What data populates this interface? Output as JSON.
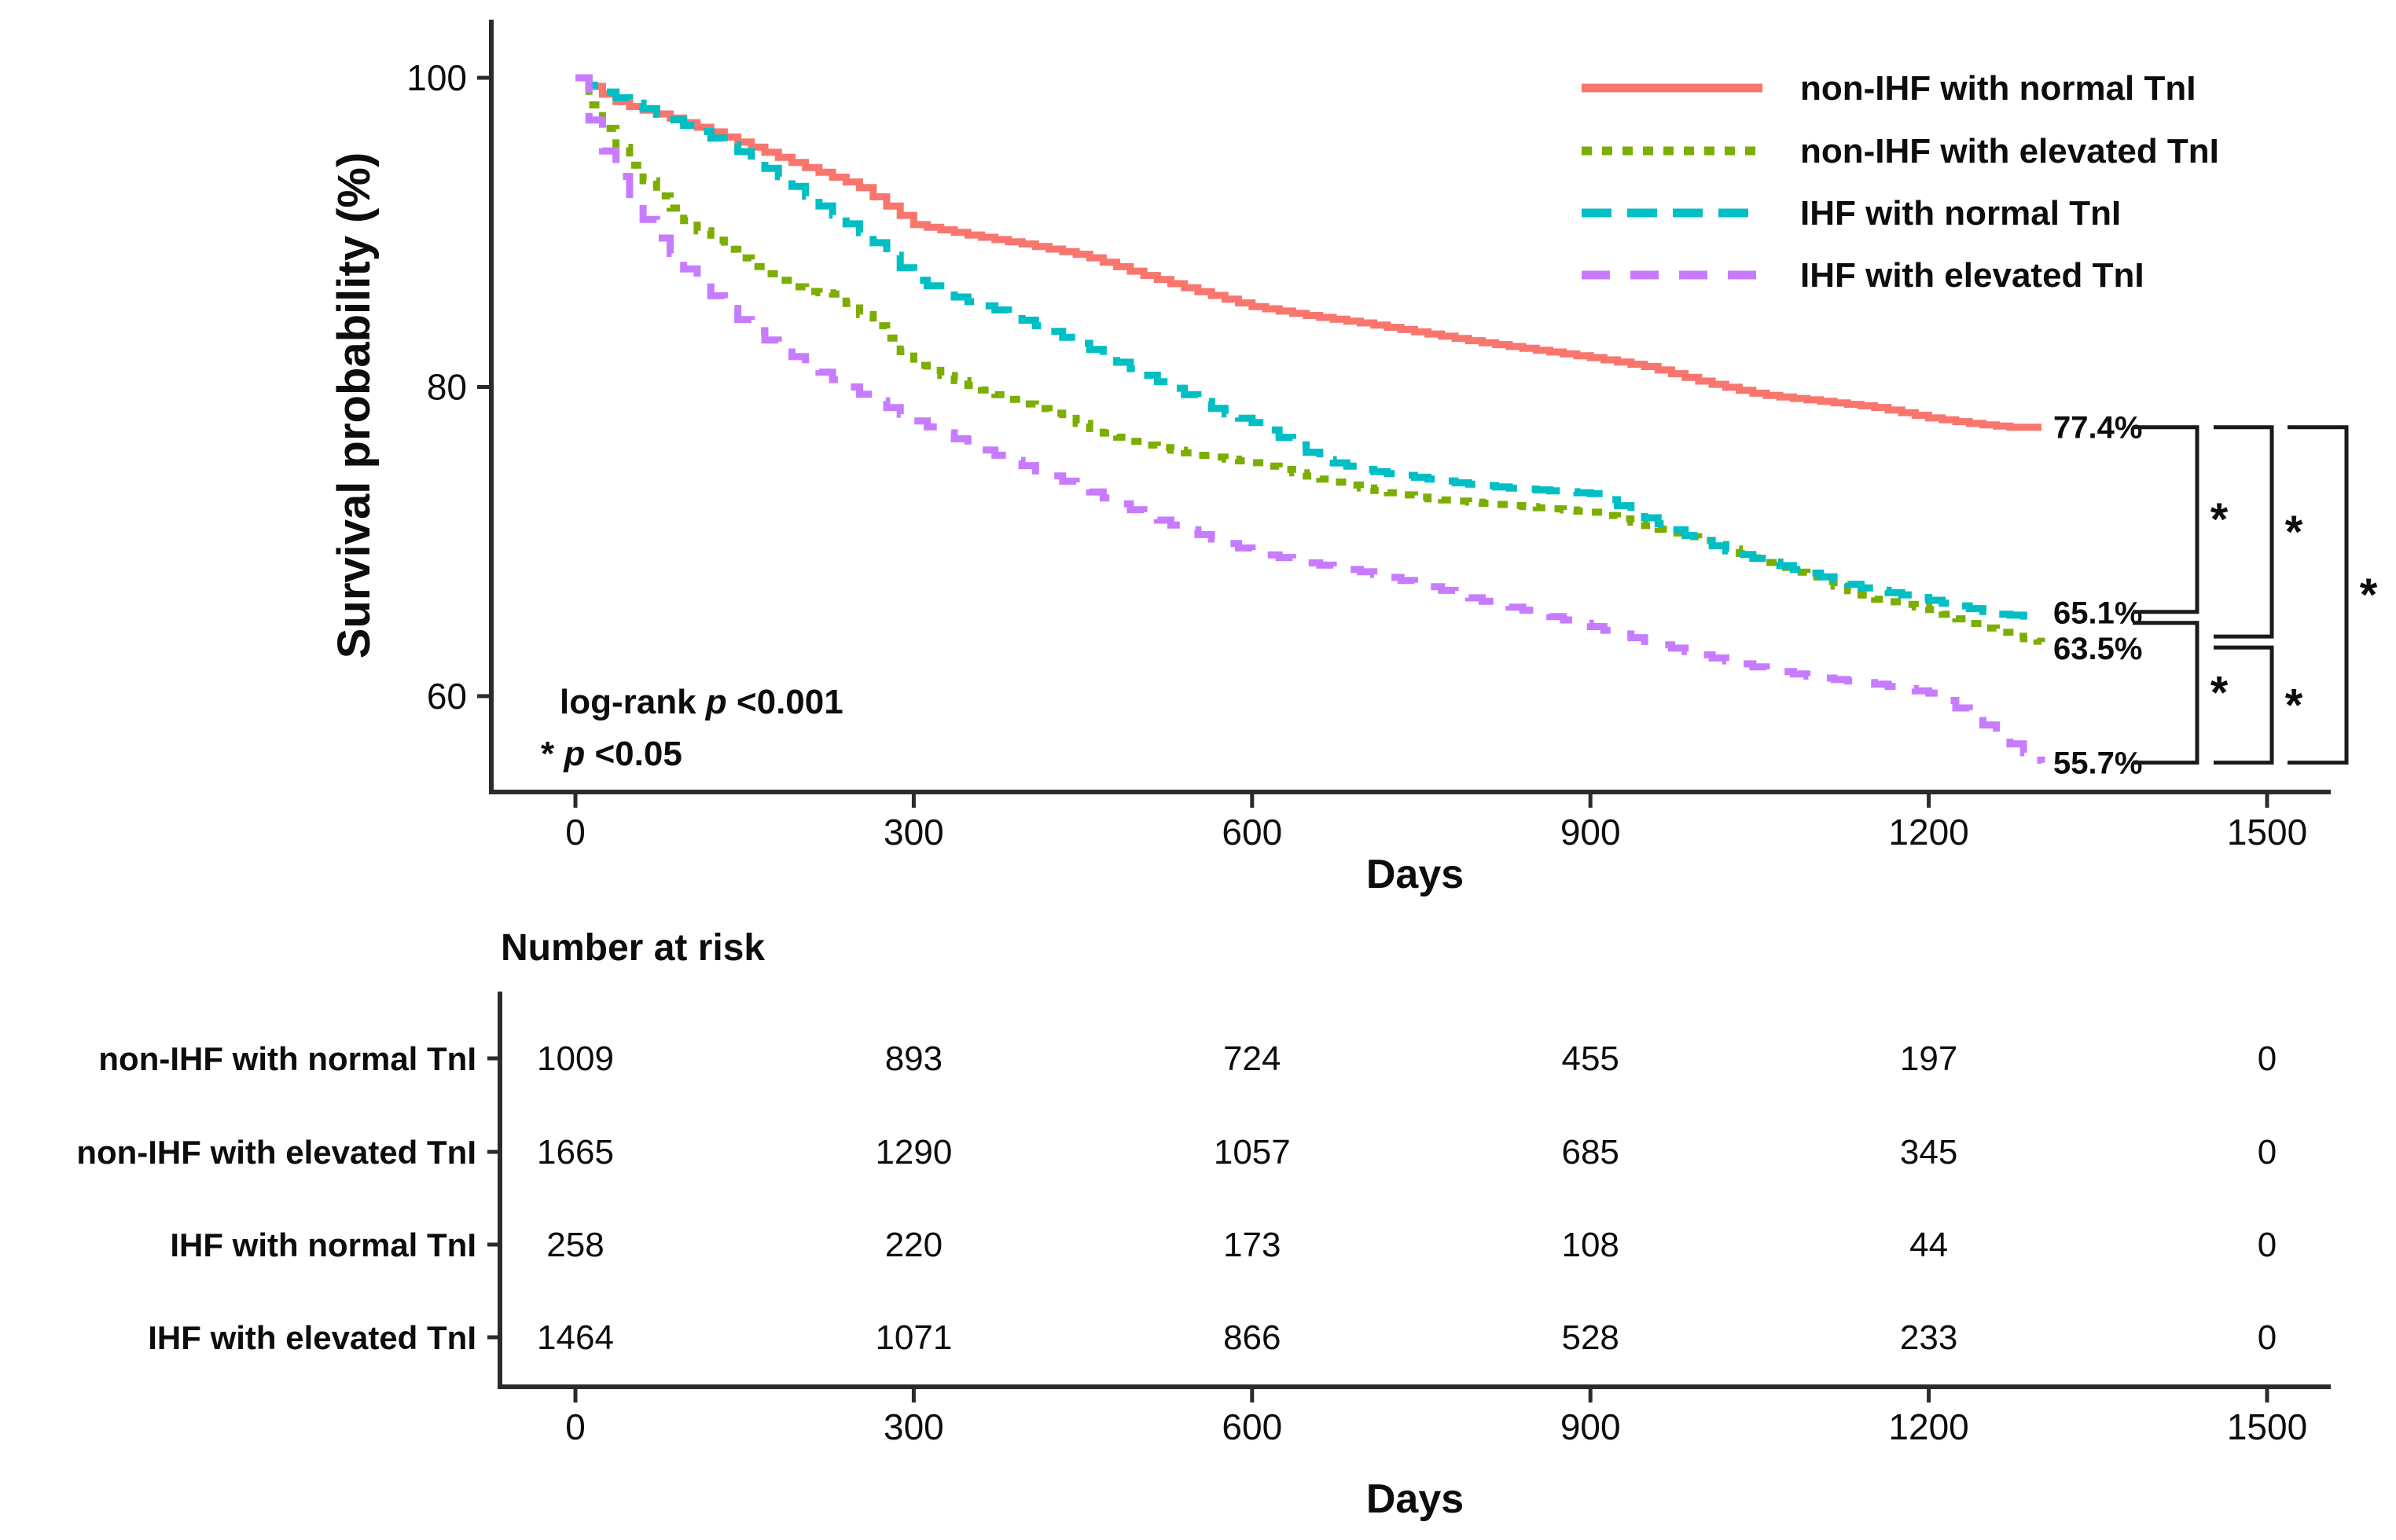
{
  "figure": {
    "background": "#ffffff",
    "text_color": "#0d0d0d"
  },
  "chart_data": {
    "type": "line",
    "subtype": "kaplan-meier-step",
    "title": "",
    "xlabel": "Days",
    "ylabel": "Survival probability (%)",
    "x_ticks": [
      0,
      300,
      600,
      900,
      1200,
      1500
    ],
    "y_ticks": [
      100,
      80,
      60
    ],
    "xlim": [
      0,
      1500
    ],
    "ylim_visible": [
      53.8,
      103.8
    ],
    "grid": false,
    "legend_position": "top-right",
    "series": [
      {
        "name": "non-IHF with normal TnI",
        "color": "#F8766D",
        "dash": "solid",
        "end_label": "77.4%",
        "end_value": 77.4,
        "points": [
          [
            0,
            100
          ],
          [
            15,
            99.3
          ],
          [
            40,
            98.3
          ],
          [
            80,
            97.5
          ],
          [
            120,
            96.5
          ],
          [
            160,
            95.4
          ],
          [
            200,
            94.3
          ],
          [
            250,
            93.0
          ],
          [
            300,
            90.5
          ],
          [
            350,
            89.8
          ],
          [
            400,
            89.2
          ],
          [
            450,
            88.5
          ],
          [
            500,
            87.3
          ],
          [
            550,
            86.2
          ],
          [
            600,
            85.2
          ],
          [
            650,
            84.6
          ],
          [
            700,
            84.1
          ],
          [
            750,
            83.5
          ],
          [
            800,
            82.9
          ],
          [
            850,
            82.4
          ],
          [
            900,
            81.9
          ],
          [
            950,
            81.3
          ],
          [
            1000,
            80.3
          ],
          [
            1050,
            79.5
          ],
          [
            1100,
            79.1
          ],
          [
            1150,
            78.7
          ],
          [
            1200,
            78.0
          ],
          [
            1240,
            77.6
          ],
          [
            1270,
            77.4
          ],
          [
            1300,
            77.4
          ]
        ]
      },
      {
        "name": "non-IHF with elevated TnI",
        "color": "#7CAE00",
        "dash": "dotted",
        "end_label": "63.5%",
        "end_value": 63.5,
        "points": [
          [
            0,
            100
          ],
          [
            10,
            98.5
          ],
          [
            25,
            96.6
          ],
          [
            45,
            94.6
          ],
          [
            70,
            92.5
          ],
          [
            100,
            90.5
          ],
          [
            130,
            89.0
          ],
          [
            160,
            87.6
          ],
          [
            200,
            86.2
          ],
          [
            230,
            86.0
          ],
          [
            270,
            83.6
          ],
          [
            300,
            81.4
          ],
          [
            340,
            80.3
          ],
          [
            380,
            79.3
          ],
          [
            420,
            78.3
          ],
          [
            460,
            77.2
          ],
          [
            500,
            76.3
          ],
          [
            550,
            75.6
          ],
          [
            600,
            75.1
          ],
          [
            650,
            74.2
          ],
          [
            700,
            73.4
          ],
          [
            750,
            72.8
          ],
          [
            800,
            72.5
          ],
          [
            850,
            72.2
          ],
          [
            900,
            71.9
          ],
          [
            950,
            71.0
          ],
          [
            1000,
            70.0
          ],
          [
            1050,
            68.8
          ],
          [
            1100,
            67.5
          ],
          [
            1150,
            66.3
          ],
          [
            1200,
            65.6
          ],
          [
            1240,
            64.6
          ],
          [
            1270,
            63.9
          ],
          [
            1300,
            63.5
          ]
        ]
      },
      {
        "name": "IHF with normal TnI",
        "color": "#00BFC4",
        "dash": "dashed",
        "end_label": "65.1%",
        "end_value": 65.1,
        "points": [
          [
            0,
            100
          ],
          [
            20,
            99.2
          ],
          [
            60,
            98.0
          ],
          [
            100,
            96.8
          ],
          [
            140,
            95.4
          ],
          [
            180,
            93.6
          ],
          [
            220,
            91.5
          ],
          [
            260,
            89.6
          ],
          [
            300,
            86.9
          ],
          [
            340,
            85.7
          ],
          [
            380,
            84.8
          ],
          [
            420,
            83.6
          ],
          [
            460,
            82.3
          ],
          [
            500,
            80.9
          ],
          [
            540,
            79.5
          ],
          [
            570,
            78.4
          ],
          [
            600,
            77.7
          ],
          [
            630,
            76.5
          ],
          [
            660,
            75.3
          ],
          [
            700,
            74.6
          ],
          [
            740,
            74.2
          ],
          [
            780,
            73.8
          ],
          [
            820,
            73.5
          ],
          [
            860,
            73.3
          ],
          [
            900,
            73.1
          ],
          [
            940,
            71.8
          ],
          [
            980,
            70.5
          ],
          [
            1020,
            69.4
          ],
          [
            1060,
            68.6
          ],
          [
            1100,
            67.8
          ],
          [
            1140,
            67.0
          ],
          [
            1180,
            66.5
          ],
          [
            1220,
            65.9
          ],
          [
            1260,
            65.3
          ],
          [
            1300,
            65.1
          ]
        ]
      },
      {
        "name": "IHF with elevated TnI",
        "color": "#C77CFF",
        "dash": "long-dashed",
        "end_label": "55.7%",
        "end_value": 55.7,
        "points": [
          [
            0,
            100
          ],
          [
            10,
            97.6
          ],
          [
            25,
            95.1
          ],
          [
            45,
            92.4
          ],
          [
            70,
            89.8
          ],
          [
            100,
            87.3
          ],
          [
            130,
            85.2
          ],
          [
            160,
            83.4
          ],
          [
            200,
            81.6
          ],
          [
            250,
            79.6
          ],
          [
            300,
            77.8
          ],
          [
            350,
            76.2
          ],
          [
            400,
            74.8
          ],
          [
            450,
            73.4
          ],
          [
            500,
            71.8
          ],
          [
            550,
            70.5
          ],
          [
            600,
            69.3
          ],
          [
            650,
            68.6
          ],
          [
            700,
            68.0
          ],
          [
            750,
            67.2
          ],
          [
            800,
            66.2
          ],
          [
            850,
            65.4
          ],
          [
            900,
            64.5
          ],
          [
            950,
            63.5
          ],
          [
            1000,
            62.6
          ],
          [
            1050,
            61.8
          ],
          [
            1100,
            61.2
          ],
          [
            1150,
            60.8
          ],
          [
            1200,
            60.2
          ],
          [
            1230,
            59.0
          ],
          [
            1255,
            57.8
          ],
          [
            1280,
            56.5
          ],
          [
            1300,
            55.7
          ]
        ]
      }
    ],
    "annotations": {
      "log_rank_prefix": "log-rank ",
      "log_rank_p": "p",
      "log_rank_value": " <0.001",
      "star_prefix": "* ",
      "star_p": "p",
      "star_value": " <0.05"
    },
    "significance": [
      {
        "pair": [
          "non-IHF with normal TnI",
          "IHF with normal TnI"
        ],
        "marker": "*",
        "tier": 1,
        "span": [
          77.4,
          65.1
        ]
      },
      {
        "pair": [
          "IHF with normal TnI",
          "IHF with elevated TnI"
        ],
        "marker": "*",
        "tier": 1,
        "span": [
          65.1,
          55.7
        ]
      },
      {
        "pair": [
          "non-IHF with normal TnI",
          "non-IHF with elevated TnI"
        ],
        "marker": "*",
        "tier": 2,
        "span": [
          77.4,
          63.5
        ]
      },
      {
        "pair": [
          "non-IHF with elevated TnI",
          "IHF with elevated TnI"
        ],
        "marker": "*",
        "tier": 2,
        "span": [
          63.5,
          55.7
        ]
      },
      {
        "pair": [
          "non-IHF with normal TnI",
          "IHF with elevated TnI"
        ],
        "marker": "*",
        "tier": 3,
        "span": [
          77.4,
          55.7
        ]
      }
    ]
  },
  "risk_table": {
    "title": "Number at risk",
    "xlabel": "Days",
    "columns": [
      0,
      300,
      600,
      900,
      1200,
      1500
    ],
    "rows": [
      {
        "label": "non-IHF with normal TnI",
        "color": "#F8766D",
        "values": [
          1009,
          893,
          724,
          455,
          197,
          0
        ]
      },
      {
        "label": "non-IHF with elevated TnI",
        "color": "#7CAE00",
        "values": [
          1665,
          1290,
          1057,
          685,
          345,
          0
        ]
      },
      {
        "label": "IHF with normal TnI",
        "color": "#00BFC4",
        "values": [
          258,
          220,
          173,
          108,
          44,
          0
        ]
      },
      {
        "label": "IHF with elevated TnI",
        "color": "#C77CFF",
        "values": [
          1464,
          1071,
          866,
          528,
          233,
          0
        ]
      }
    ]
  }
}
